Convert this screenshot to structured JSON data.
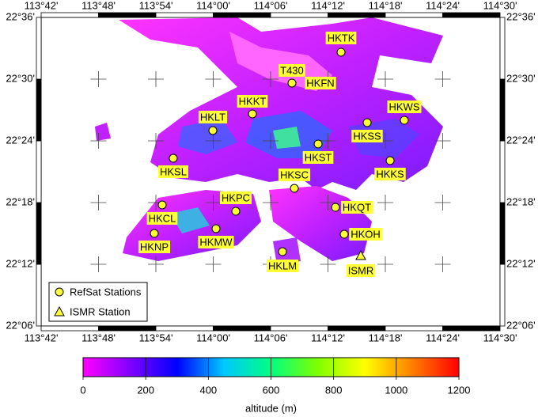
{
  "map": {
    "type": "map",
    "xlim": [
      113.7,
      114.5
    ],
    "ylim": [
      22.1,
      22.6
    ],
    "xticks": [
      {
        "value": 113.7,
        "label": "113°42'"
      },
      {
        "value": 113.8,
        "label": "113°48'"
      },
      {
        "value": 113.9,
        "label": "113°54'"
      },
      {
        "value": 114.0,
        "label": "114°00'"
      },
      {
        "value": 114.1,
        "label": "114°06'"
      },
      {
        "value": 114.2,
        "label": "114°12'"
      },
      {
        "value": 114.3,
        "label": "114°18'"
      },
      {
        "value": 114.4,
        "label": "114°24'"
      },
      {
        "value": 114.5,
        "label": "114°30'"
      }
    ],
    "yticks": [
      {
        "value": 22.1,
        "label": "22°06'"
      },
      {
        "value": 22.2,
        "label": "22°12'"
      },
      {
        "value": 22.3,
        "label": "22°18'"
      },
      {
        "value": 22.4,
        "label": "22°24'"
      },
      {
        "value": 22.5,
        "label": "22°30'"
      },
      {
        "value": 22.6,
        "label": "22°36'"
      }
    ],
    "marker_color": "#ffff33",
    "stations": [
      {
        "name": "HKTK",
        "lon": 114.2228,
        "lat": 22.5436,
        "marker": "circle"
      },
      {
        "name": "T430",
        "lon": 114.1372,
        "lat": 22.4936,
        "marker": "circle"
      },
      {
        "name": "HKFN",
        "lon": 114.1372,
        "lat": 22.4936,
        "marker": "circle"
      },
      {
        "name": "HKKT",
        "lon": 114.0683,
        "lat": 22.4436,
        "marker": "circle"
      },
      {
        "name": "HKLT",
        "lon": 113.9993,
        "lat": 22.4167,
        "marker": "circle"
      },
      {
        "name": "HKWS",
        "lon": 114.3331,
        "lat": 22.4333,
        "marker": "circle"
      },
      {
        "name": "HKSS",
        "lon": 114.2683,
        "lat": 22.4295,
        "marker": "circle"
      },
      {
        "name": "HKST",
        "lon": 114.1828,
        "lat": 22.3949,
        "marker": "circle"
      },
      {
        "name": "HKSL",
        "lon": 113.9303,
        "lat": 22.3718,
        "marker": "circle"
      },
      {
        "name": "HKKS",
        "lon": 114.3083,
        "lat": 22.368,
        "marker": "circle"
      },
      {
        "name": "HKSC",
        "lon": 114.1414,
        "lat": 22.3231,
        "marker": "circle"
      },
      {
        "name": "HKPC",
        "lon": 114.0393,
        "lat": 22.2859,
        "marker": "circle"
      },
      {
        "name": "HKCL",
        "lon": 113.911,
        "lat": 22.2962,
        "marker": "circle"
      },
      {
        "name": "HKQT",
        "lon": 114.2131,
        "lat": 22.2923,
        "marker": "circle"
      },
      {
        "name": "HKMW",
        "lon": 114.0048,
        "lat": 22.2577,
        "marker": "circle"
      },
      {
        "name": "HKNP",
        "lon": 113.8972,
        "lat": 22.25,
        "marker": "circle"
      },
      {
        "name": "HKOH",
        "lon": 114.2283,
        "lat": 22.2487,
        "marker": "circle"
      },
      {
        "name": "HKLM",
        "lon": 114.1207,
        "lat": 22.2205,
        "marker": "circle"
      },
      {
        "name": "ISMR",
        "lon": 114.2572,
        "lat": 22.2141,
        "marker": "triangle"
      }
    ],
    "legend": [
      {
        "label": "RefSat Stations",
        "marker": "circle"
      },
      {
        "label": "ISMR Station",
        "marker": "triangle"
      }
    ],
    "colorbar": {
      "label": "altitude (m)",
      "lim": [
        0,
        1200
      ],
      "ticks": [
        0,
        200,
        400,
        600,
        800,
        1000,
        1200
      ],
      "colors": [
        "#ff00ff",
        "#8000ff",
        "#0000ff",
        "#00c8ff",
        "#00ff80",
        "#80ff00",
        "#ffff00",
        "#ff8000",
        "#ff0000"
      ]
    }
  }
}
